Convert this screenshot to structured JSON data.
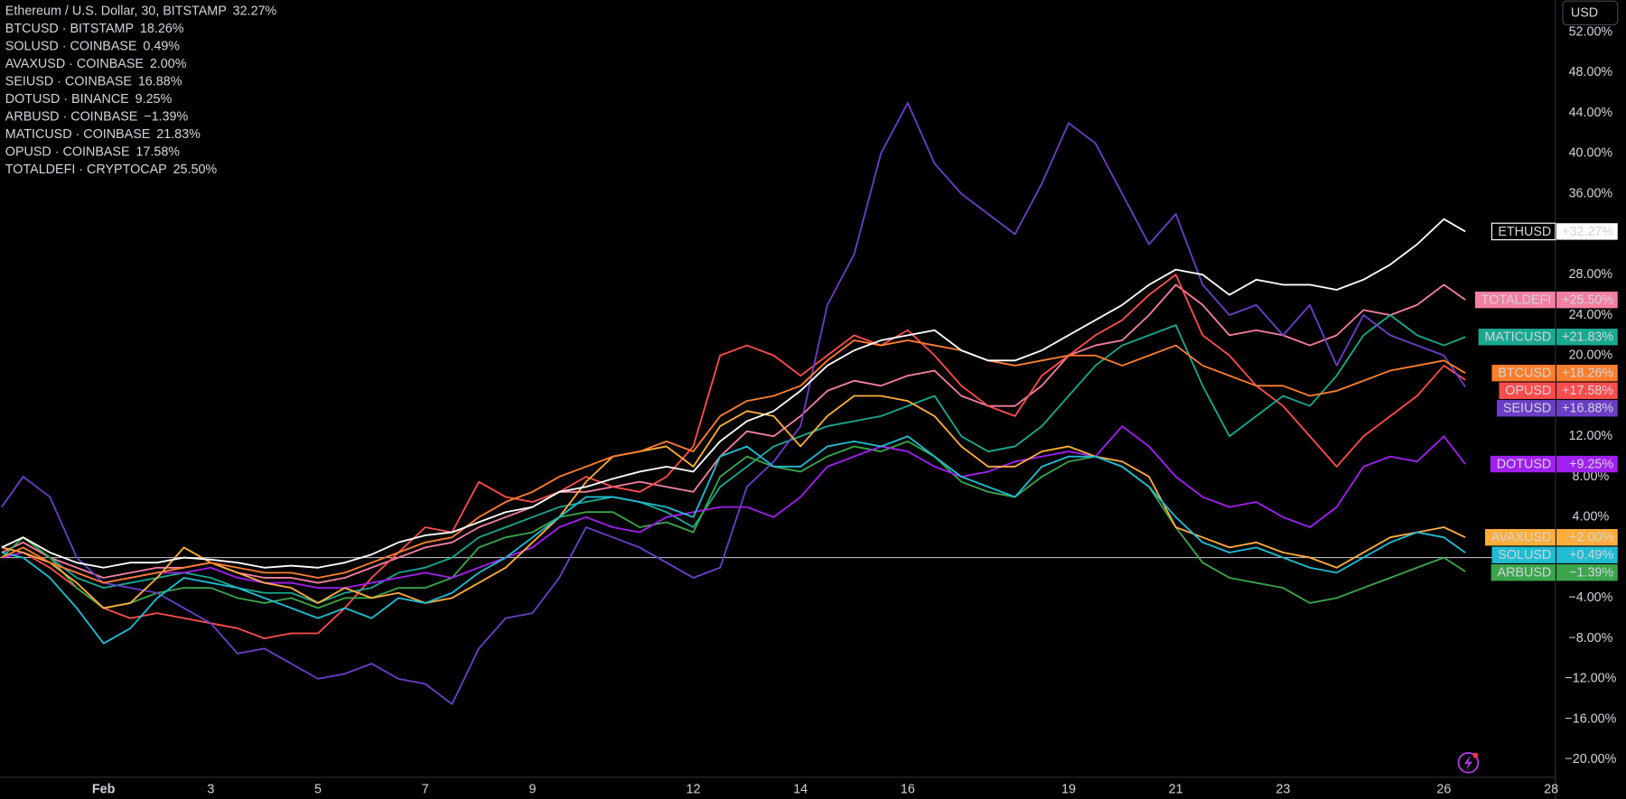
{
  "chart_data": {
    "type": "line",
    "unit_button": "USD",
    "xlim": [
      -0.93,
      28.08
    ],
    "xticks": [
      {
        "value": 1,
        "label": "Feb"
      },
      3,
      5,
      7,
      9,
      12,
      14,
      16,
      19,
      21,
      23,
      26,
      28
    ],
    "ylim": [
      -21.74,
      55.18
    ],
    "yticks": [
      {
        "value": 52,
        "label": "52.00%"
      },
      {
        "value": 48,
        "label": "48.00%"
      },
      {
        "value": 44,
        "label": "44.00%"
      },
      {
        "value": 40,
        "label": "40.00%"
      },
      {
        "value": 36,
        "label": "36.00%"
      },
      {
        "value": 28,
        "label": "28.00%"
      },
      {
        "value": 24,
        "label": "24.00%"
      },
      {
        "value": 20,
        "label": "20.00%"
      },
      {
        "value": 12,
        "label": "12.00%"
      },
      {
        "value": 8,
        "label": "8.00%"
      },
      {
        "value": 4,
        "label": "4.00%"
      },
      {
        "value": -4,
        "label": "−4.00%"
      },
      {
        "value": -8,
        "label": "−8.00%"
      },
      {
        "value": -12,
        "label": "−12.00%"
      },
      {
        "value": -16,
        "label": "−16.00%"
      },
      {
        "value": -20,
        "label": "−20.00%"
      }
    ],
    "x": [
      -0.9,
      -0.5,
      0,
      0.5,
      1,
      1.5,
      2,
      2.5,
      3,
      3.5,
      4,
      4.5,
      5,
      5.5,
      6,
      6.5,
      7,
      7.5,
      8,
      8.5,
      9,
      9.5,
      10,
      10.5,
      11,
      11.5,
      12,
      12.5,
      13,
      13.5,
      14,
      14.5,
      15,
      15.5,
      16,
      16.5,
      17,
      17.5,
      18,
      18.5,
      19,
      19.5,
      20,
      20.5,
      21,
      21.5,
      22,
      22.5,
      23,
      23.5,
      24,
      24.5,
      25,
      25.5,
      26,
      26.4
    ],
    "series": [
      {
        "name": "ETHUSD",
        "legend": "Ethereum / U.S. Dollar, 30, BITSTAMP",
        "legend_label": "32.27%",
        "badge_label": "+32.27%",
        "color": "#ffffff",
        "values": [
          1.0,
          2.0,
          0.5,
          -0.5,
          -1.0,
          -0.5,
          -0.5,
          0.0,
          -0.2,
          -0.5,
          -1.0,
          -0.8,
          -1.0,
          -0.5,
          0.3,
          1.5,
          2.2,
          2.5,
          3.5,
          4.5,
          5.0,
          6.5,
          7.0,
          7.8,
          8.5,
          9.0,
          8.5,
          11.5,
          13.5,
          14.5,
          16.5,
          19,
          20.5,
          21.5,
          22,
          22.5,
          20.5,
          19.5,
          19.5,
          20.5,
          22,
          23.5,
          25,
          27,
          28.5,
          28,
          26,
          27.5,
          27,
          27,
          26.5,
          27.5,
          29,
          31,
          33.5,
          32.27
        ]
      },
      {
        "name": "BTCUSD",
        "legend": "BTCUSD · BITSTAMP",
        "legend_label": "18.26%",
        "badge_label": "+18.26%",
        "color": "#ff7e2e",
        "values": [
          0,
          1,
          -0.5,
          -1.5,
          -2.5,
          -2,
          -1.5,
          -1,
          -0.5,
          -1,
          -1.5,
          -1.5,
          -2,
          -1.5,
          -0.5,
          0.5,
          1.5,
          2,
          4,
          5.5,
          6.5,
          8,
          9,
          10,
          10.5,
          11.5,
          10.5,
          14,
          15.5,
          16,
          17,
          19.5,
          21.5,
          21,
          21.5,
          21,
          20.5,
          19.5,
          19,
          19.5,
          20,
          20,
          19,
          20,
          21,
          19,
          18,
          17,
          17,
          16,
          16.5,
          17.5,
          18.5,
          19,
          19.5,
          18.26
        ]
      },
      {
        "name": "SOLUSD",
        "legend": "SOLUSD · COINBASE",
        "legend_label": "0.49%",
        "badge_label": "+0.49%",
        "color": "#1fbcd2",
        "values": [
          0.5,
          0,
          -2,
          -5,
          -8.5,
          -7,
          -4,
          -2,
          -2.5,
          -3,
          -4,
          -5,
          -6,
          -5,
          -6,
          -4,
          -4.5,
          -3.5,
          -1.5,
          0,
          2,
          4,
          6,
          6,
          5.5,
          5,
          4,
          10,
          11,
          9,
          9,
          11,
          11.5,
          11,
          12,
          10,
          8,
          7,
          6,
          9,
          10,
          10,
          9,
          7,
          4,
          1.5,
          0.5,
          1,
          0,
          -1,
          -1.5,
          0,
          1.5,
          2.5,
          2,
          0.49
        ]
      },
      {
        "name": "AVAXUSD",
        "legend": "AVAXUSD · COINBASE",
        "legend_label": "2.00%",
        "badge_label": "+2.00%",
        "color": "#ffad3b",
        "values": [
          1,
          0.5,
          -0.5,
          -2.5,
          -5,
          -4.5,
          -2,
          1,
          -0.5,
          -1.5,
          -2.5,
          -3,
          -4.5,
          -3,
          -4,
          -3.5,
          -4.5,
          -4,
          -2.5,
          -1,
          1.5,
          4,
          7.5,
          10,
          10.5,
          11,
          9,
          13,
          14.5,
          14,
          11,
          14,
          16,
          16,
          15.5,
          14,
          11,
          9,
          9,
          10.5,
          11,
          10,
          9.5,
          8,
          3,
          2,
          1,
          1.5,
          0.5,
          0,
          -1,
          0.5,
          2,
          2.5,
          3,
          2.0
        ]
      },
      {
        "name": "SEIUSD",
        "legend": "SEIUSD · COINBASE",
        "legend_label": "16.88%",
        "badge_label": "+16.88%",
        "color": "#6a3fc6",
        "values": [
          5,
          8,
          6,
          0,
          -2.5,
          -3,
          -3.5,
          -5,
          -6.5,
          -9.5,
          -9,
          -10.5,
          -12,
          -11.5,
          -10.5,
          -12,
          -12.5,
          -14.5,
          -9,
          -6,
          -5.5,
          -2,
          3,
          2,
          1,
          -0.5,
          -2,
          -1,
          7,
          9.5,
          13,
          25,
          30,
          40,
          45,
          39,
          36,
          34,
          32,
          37,
          43,
          41,
          36,
          31,
          34,
          27,
          24,
          25,
          22,
          25,
          19,
          24,
          22,
          21,
          20,
          16.88
        ]
      },
      {
        "name": "DOTUSD",
        "legend": "DOTUSD · BINANCE",
        "legend_label": "9.25%",
        "badge_label": "+9.25%",
        "color": "#a11ff0",
        "values": [
          0,
          0.5,
          -0.5,
          -1.5,
          -2.5,
          -2,
          -1.5,
          -1.5,
          -1,
          -2,
          -2.5,
          -2.5,
          -3,
          -3,
          -2.5,
          -2,
          -1.5,
          -2,
          -1,
          0,
          1,
          3,
          4,
          3,
          2.5,
          4,
          4.5,
          5,
          5,
          4,
          6,
          9,
          10,
          11,
          10.5,
          9,
          8,
          8.5,
          9.5,
          10,
          10.5,
          10,
          13,
          11,
          8,
          6,
          5,
          5.5,
          4,
          3,
          5,
          9,
          10,
          9.5,
          12,
          9.25
        ]
      },
      {
        "name": "ARBUSD",
        "legend": "ARBUSD · COINBASE",
        "legend_label": "−1.39%",
        "badge_label": "−1.39%",
        "color": "#3aa54a",
        "values": [
          0,
          2,
          0,
          -3,
          -5,
          -4.5,
          -3.5,
          -3,
          -3,
          -4,
          -4.5,
          -4,
          -5,
          -4,
          -4,
          -3,
          -3,
          -2,
          1,
          2,
          2.5,
          4,
          4.5,
          4.5,
          3,
          3.5,
          2.5,
          8,
          10,
          9,
          8.5,
          10,
          11,
          10.5,
          11.5,
          10,
          7.5,
          6.5,
          6,
          8,
          9.5,
          10,
          9,
          7,
          3,
          -0.5,
          -2,
          -2.5,
          -3,
          -4.5,
          -4,
          -3,
          -2,
          -1,
          0,
          -1.39
        ]
      },
      {
        "name": "MATICUSD",
        "legend": "MATICUSD · COINBASE",
        "legend_label": "21.83%",
        "badge_label": "+21.83%",
        "color": "#19a890",
        "values": [
          1,
          2,
          0,
          -2,
          -3,
          -2.5,
          -2,
          -1.5,
          -2,
          -3,
          -3.5,
          -3.5,
          -4.5,
          -3.5,
          -3,
          -1.5,
          -1,
          0,
          2,
          3,
          4,
          5,
          5.5,
          6,
          5.5,
          4.5,
          3,
          7,
          9,
          11,
          12,
          13,
          13.5,
          14,
          15,
          16,
          12,
          10.5,
          11,
          13,
          16,
          19,
          21,
          22,
          23,
          17,
          12,
          14,
          16,
          15,
          18,
          22,
          24,
          22,
          21,
          21.83
        ]
      },
      {
        "name": "OPUSD",
        "legend": "OPUSD · COINBASE",
        "legend_label": "17.58%",
        "badge_label": "+17.58%",
        "color": "#ff4d4d",
        "values": [
          0,
          0.5,
          -1,
          -3,
          -5,
          -6,
          -5.5,
          -6,
          -6.5,
          -7,
          -8,
          -7.5,
          -7.5,
          -5,
          -2,
          0.5,
          3,
          2.5,
          7.5,
          6,
          5.5,
          6.5,
          8,
          7,
          6.5,
          8,
          11,
          20,
          21,
          20,
          18,
          20,
          22,
          21,
          22.5,
          20,
          17,
          15,
          14,
          18,
          20,
          22,
          23.5,
          26,
          28,
          22,
          20,
          17,
          15,
          12,
          9,
          12,
          14,
          16,
          19,
          17.58
        ]
      },
      {
        "name": "TOTALDEFI",
        "legend": "TOTALDEFI · CRYPTOCAP",
        "legend_label": "25.50%",
        "badge_label": "+25.50%",
        "color": "#f47fa0",
        "values": [
          0.5,
          1.5,
          0,
          -1,
          -2,
          -1.5,
          -1,
          -1,
          -0.5,
          -1.5,
          -2,
          -2,
          -2.5,
          -2,
          -1,
          0,
          1,
          1.5,
          3,
          4,
          5,
          6.5,
          6.5,
          7,
          7.5,
          7,
          6.5,
          10,
          12.5,
          12,
          14,
          16.5,
          17.5,
          17,
          18,
          18.5,
          16,
          15,
          15,
          17,
          20,
          21,
          21.5,
          24,
          27,
          25,
          22,
          22.5,
          22,
          21,
          22,
          24.5,
          24,
          25,
          27,
          25.5
        ]
      }
    ]
  }
}
